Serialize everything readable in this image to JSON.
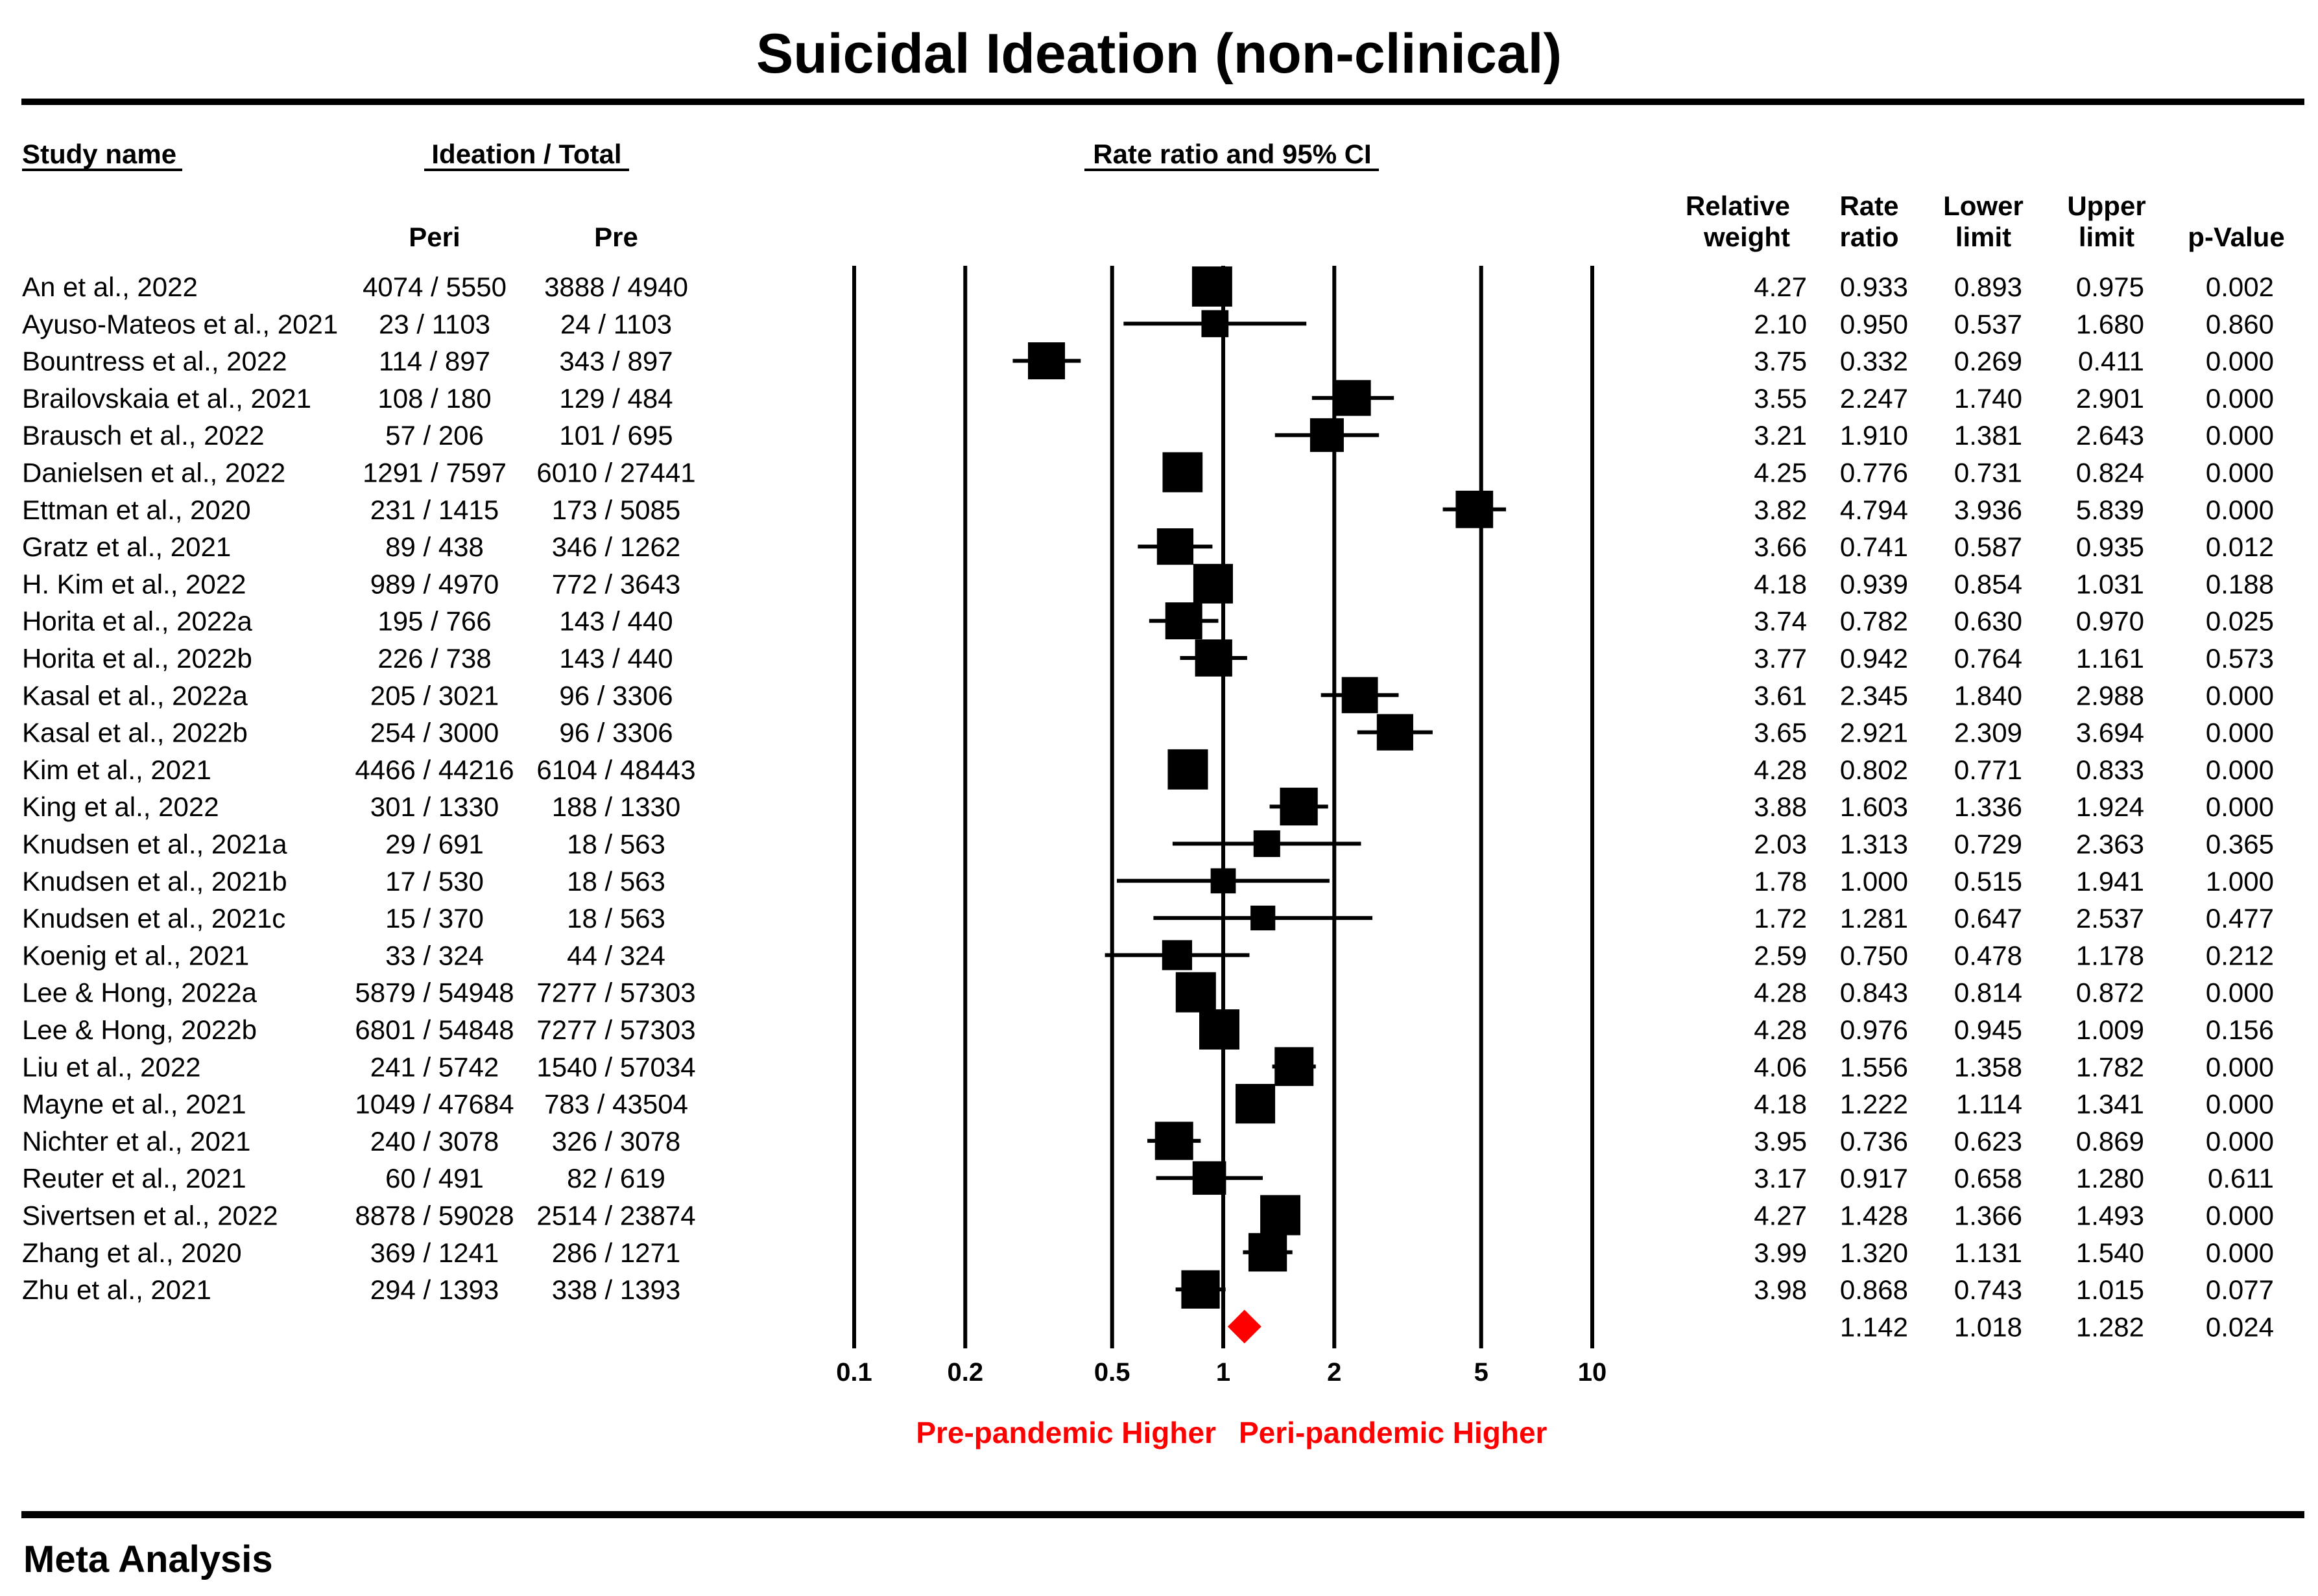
{
  "chart_data": {
    "type": "forest",
    "title": "Suicidal Ideation (non-clinical)",
    "footer": "Meta Analysis",
    "headers": {
      "study_name": "Study name",
      "ideation_total": "Ideation / Total",
      "peri": "Peri",
      "pre": "Pre",
      "ci": "Rate ratio and 95% CI",
      "weight_line1": "Relative",
      "weight_line2": "weight",
      "rate_line1": "Rate",
      "rate_line2": "ratio",
      "lower_line1": "Lower",
      "lower_line2": "limit",
      "upper_line1": "Upper",
      "upper_line2": "limit",
      "pvalue": "p-Value"
    },
    "x_scale": "log",
    "xlim": [
      0.1,
      10
    ],
    "ticks": [
      {
        "value": 0.1,
        "label": "0.1"
      },
      {
        "value": 0.2,
        "label": "0.2"
      },
      {
        "value": 0.5,
        "label": "0.5"
      },
      {
        "value": 1,
        "label": "1"
      },
      {
        "value": 2,
        "label": "2"
      },
      {
        "value": 5,
        "label": "5"
      },
      {
        "value": 10,
        "label": "10"
      }
    ],
    "direction_left": "Pre-pandemic Higher",
    "direction_right": "Peri-pandemic Higher",
    "direction_color": "#ff0000",
    "summary_color": "#ff0000",
    "studies": [
      {
        "name": "An et al., 2022",
        "peri": "4074 / 5550",
        "pre": "3888 / 4940",
        "weight": "4.27",
        "rr": "0.933",
        "lower": "0.893",
        "upper": "0.975",
        "p": "0.002"
      },
      {
        "name": "Ayuso-Mateos et al., 2021",
        "peri": "23 / 1103",
        "pre": "24 / 1103",
        "weight": "2.10",
        "rr": "0.950",
        "lower": "0.537",
        "upper": "1.680",
        "p": "0.860"
      },
      {
        "name": "Bountress et al., 2022",
        "peri": "114 / 897",
        "pre": "343 / 897",
        "weight": "3.75",
        "rr": "0.332",
        "lower": "0.269",
        "upper": "0.411",
        "p": "0.000"
      },
      {
        "name": "Brailovskaia et al., 2021",
        "peri": "108 / 180",
        "pre": "129 / 484",
        "weight": "3.55",
        "rr": "2.247",
        "lower": "1.740",
        "upper": "2.901",
        "p": "0.000"
      },
      {
        "name": "Brausch et al., 2022",
        "peri": "57 / 206",
        "pre": "101 / 695",
        "weight": "3.21",
        "rr": "1.910",
        "lower": "1.381",
        "upper": "2.643",
        "p": "0.000"
      },
      {
        "name": "Danielsen et al., 2022",
        "peri": "1291 / 7597",
        "pre": "6010 / 27441",
        "weight": "4.25",
        "rr": "0.776",
        "lower": "0.731",
        "upper": "0.824",
        "p": "0.000"
      },
      {
        "name": "Ettman et al., 2020",
        "peri": "231 / 1415",
        "pre": "173 / 5085",
        "weight": "3.82",
        "rr": "4.794",
        "lower": "3.936",
        "upper": "5.839",
        "p": "0.000"
      },
      {
        "name": "Gratz et al., 2021",
        "peri": "89 / 438",
        "pre": "346 / 1262",
        "weight": "3.66",
        "rr": "0.741",
        "lower": "0.587",
        "upper": "0.935",
        "p": "0.012"
      },
      {
        "name": "H. Kim et al., 2022",
        "peri": "989 / 4970",
        "pre": "772 / 3643",
        "weight": "4.18",
        "rr": "0.939",
        "lower": "0.854",
        "upper": "1.031",
        "p": "0.188"
      },
      {
        "name": "Horita et al., 2022a",
        "peri": "195 / 766",
        "pre": "143 / 440",
        "weight": "3.74",
        "rr": "0.782",
        "lower": "0.630",
        "upper": "0.970",
        "p": "0.025"
      },
      {
        "name": "Horita et al., 2022b",
        "peri": "226 / 738",
        "pre": "143 / 440",
        "weight": "3.77",
        "rr": "0.942",
        "lower": "0.764",
        "upper": "1.161",
        "p": "0.573"
      },
      {
        "name": "Kasal et al., 2022a",
        "peri": "205 / 3021",
        "pre": "96 / 3306",
        "weight": "3.61",
        "rr": "2.345",
        "lower": "1.840",
        "upper": "2.988",
        "p": "0.000"
      },
      {
        "name": "Kasal et al., 2022b",
        "peri": "254 / 3000",
        "pre": "96 / 3306",
        "weight": "3.65",
        "rr": "2.921",
        "lower": "2.309",
        "upper": "3.694",
        "p": "0.000"
      },
      {
        "name": "Kim et al., 2021",
        "peri": "4466 / 44216",
        "pre": "6104 / 48443",
        "weight": "4.28",
        "rr": "0.802",
        "lower": "0.771",
        "upper": "0.833",
        "p": "0.000"
      },
      {
        "name": "King et al., 2022",
        "peri": "301 / 1330",
        "pre": "188 / 1330",
        "weight": "3.88",
        "rr": "1.603",
        "lower": "1.336",
        "upper": "1.924",
        "p": "0.000"
      },
      {
        "name": "Knudsen et al., 2021a",
        "peri": "29 / 691",
        "pre": "18 / 563",
        "weight": "2.03",
        "rr": "1.313",
        "lower": "0.729",
        "upper": "2.363",
        "p": "0.365"
      },
      {
        "name": "Knudsen et al., 2021b",
        "peri": "17 / 530",
        "pre": "18 / 563",
        "weight": "1.78",
        "rr": "1.000",
        "lower": "0.515",
        "upper": "1.941",
        "p": "1.000"
      },
      {
        "name": "Knudsen et al., 2021c",
        "peri": "15 / 370",
        "pre": "18 / 563",
        "weight": "1.72",
        "rr": "1.281",
        "lower": "0.647",
        "upper": "2.537",
        "p": "0.477"
      },
      {
        "name": "Koenig et al., 2021",
        "peri": "33 / 324",
        "pre": "44 / 324",
        "weight": "2.59",
        "rr": "0.750",
        "lower": "0.478",
        "upper": "1.178",
        "p": "0.212"
      },
      {
        "name": "Lee & Hong, 2022a",
        "peri": "5879 / 54948",
        "pre": "7277 / 57303",
        "weight": "4.28",
        "rr": "0.843",
        "lower": "0.814",
        "upper": "0.872",
        "p": "0.000"
      },
      {
        "name": "Lee & Hong, 2022b",
        "peri": "6801 / 54848",
        "pre": "7277 / 57303",
        "weight": "4.28",
        "rr": "0.976",
        "lower": "0.945",
        "upper": "1.009",
        "p": "0.156"
      },
      {
        "name": "Liu et al., 2022",
        "peri": "241 / 5742",
        "pre": "1540 / 57034",
        "weight": "4.06",
        "rr": "1.556",
        "lower": "1.358",
        "upper": "1.782",
        "p": "0.000"
      },
      {
        "name": "Mayne et al., 2021",
        "peri": "1049 / 47684",
        "pre": "783 / 43504",
        "weight": "4.18",
        "rr": "1.222",
        "lower": "1.114",
        "upper": "1.341",
        "p": "0.000"
      },
      {
        "name": "Nichter et al., 2021",
        "peri": "240 / 3078",
        "pre": "326 / 3078",
        "weight": "3.95",
        "rr": "0.736",
        "lower": "0.623",
        "upper": "0.869",
        "p": "0.000"
      },
      {
        "name": "Reuter et al., 2021",
        "peri": "60 / 491",
        "pre": "82 / 619",
        "weight": "3.17",
        "rr": "0.917",
        "lower": "0.658",
        "upper": "1.280",
        "p": "0.611"
      },
      {
        "name": "Sivertsen et al., 2022",
        "peri": "8878 / 59028",
        "pre": "2514 / 23874",
        "weight": "4.27",
        "rr": "1.428",
        "lower": "1.366",
        "upper": "1.493",
        "p": "0.000"
      },
      {
        "name": "Zhang et al., 2020",
        "peri": "369 / 1241",
        "pre": "286 / 1271",
        "weight": "3.99",
        "rr": "1.320",
        "lower": "1.131",
        "upper": "1.540",
        "p": "0.000"
      },
      {
        "name": "Zhu et al., 2021",
        "peri": "294 / 1393",
        "pre": "338 / 1393",
        "weight": "3.98",
        "rr": "0.868",
        "lower": "0.743",
        "upper": "1.015",
        "p": "0.077"
      }
    ],
    "summary": {
      "rr": "1.142",
      "lower": "1.018",
      "upper": "1.282",
      "p": "0.024"
    }
  }
}
